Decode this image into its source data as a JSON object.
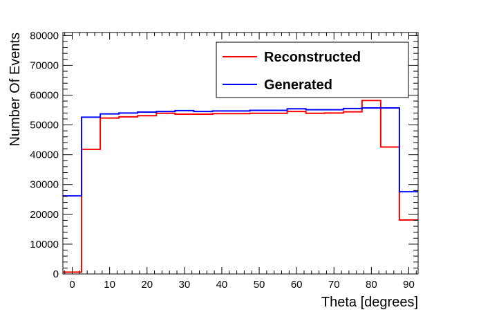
{
  "chart_data": {
    "type": "line",
    "title": "",
    "xlabel": "Theta [degrees]",
    "ylabel": "Number Of Events",
    "xlim": [
      -2.5,
      92.5
    ],
    "ylim": [
      0,
      81000
    ],
    "grid": false,
    "legend_position": "top-right",
    "x_bin_edges": [
      -2.5,
      2.5,
      7.5,
      12.5,
      17.5,
      22.5,
      27.5,
      32.5,
      37.5,
      42.5,
      47.5,
      52.5,
      57.5,
      62.5,
      67.5,
      72.5,
      77.5,
      82.5,
      87.5,
      92.5
    ],
    "x_ticks": [
      {
        "value": 0,
        "label": "0"
      },
      {
        "value": 10,
        "label": "10"
      },
      {
        "value": 20,
        "label": "20"
      },
      {
        "value": 30,
        "label": "30"
      },
      {
        "value": 40,
        "label": "40"
      },
      {
        "value": 50,
        "label": "50"
      },
      {
        "value": 60,
        "label": "60"
      },
      {
        "value": 70,
        "label": "70"
      },
      {
        "value": 80,
        "label": "80"
      },
      {
        "value": 90,
        "label": "90"
      }
    ],
    "y_ticks": [
      {
        "value": 0,
        "label": "0"
      },
      {
        "value": 10000,
        "label": "10000"
      },
      {
        "value": 20000,
        "label": "20000"
      },
      {
        "value": 30000,
        "label": "30000"
      },
      {
        "value": 40000,
        "label": "40000"
      },
      {
        "value": 50000,
        "label": "50000"
      },
      {
        "value": 60000,
        "label": "60000"
      },
      {
        "value": 70000,
        "label": "70000"
      },
      {
        "value": 80000,
        "label": "80000"
      }
    ],
    "series": [
      {
        "name": "Reconstructed",
        "color": "#ff0000",
        "values": [
          600,
          41800,
          52300,
          52700,
          53100,
          53900,
          53600,
          53600,
          53800,
          53800,
          53900,
          53900,
          54500,
          53900,
          54000,
          54400,
          58200,
          42600,
          18100
        ]
      },
      {
        "name": "Generated",
        "color": "#0000ff",
        "values": [
          26200,
          52600,
          53700,
          54000,
          54300,
          54500,
          54800,
          54500,
          54700,
          54700,
          54900,
          54900,
          55400,
          55100,
          55100,
          55500,
          55700,
          55700,
          27600
        ]
      }
    ]
  }
}
